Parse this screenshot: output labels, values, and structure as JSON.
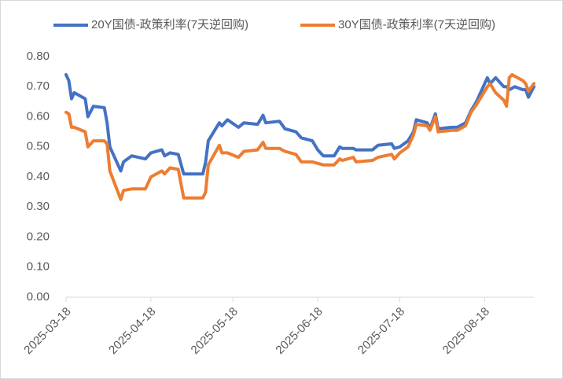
{
  "chart_data": {
    "type": "line",
    "x": [
      "2025-03-18",
      "2025-03-19",
      "2025-03-20",
      "2025-03-21",
      "2025-03-25",
      "2025-03-26",
      "2025-03-28",
      "2025-04-01",
      "2025-04-02",
      "2025-04-03",
      "2025-04-07",
      "2025-04-08",
      "2025-04-11",
      "2025-04-16",
      "2025-04-18",
      "2025-04-22",
      "2025-04-23",
      "2025-04-25",
      "2025-04-28",
      "2025-04-30",
      "2025-05-07",
      "2025-05-08",
      "2025-05-09",
      "2025-05-13",
      "2025-05-14",
      "2025-05-16",
      "2025-05-20",
      "2025-05-22",
      "2025-05-27",
      "2025-05-29",
      "2025-05-30",
      "2025-06-04",
      "2025-06-06",
      "2025-06-10",
      "2025-06-12",
      "2025-06-16",
      "2025-06-18",
      "2025-06-20",
      "2025-06-24",
      "2025-06-26",
      "2025-06-27",
      "2025-07-01",
      "2025-07-02",
      "2025-07-08",
      "2025-07-10",
      "2025-07-15",
      "2025-07-16",
      "2025-07-18",
      "2025-07-21",
      "2025-07-23",
      "2025-07-24",
      "2025-07-28",
      "2025-07-29",
      "2025-07-31",
      "2025-08-01",
      "2025-08-06",
      "2025-08-08",
      "2025-08-11",
      "2025-08-13",
      "2025-08-15",
      "2025-08-19",
      "2025-08-20",
      "2025-08-22",
      "2025-08-25",
      "2025-08-26",
      "2025-08-27",
      "2025-08-28",
      "2025-08-29",
      "2025-09-01",
      "2025-09-02",
      "2025-09-03",
      "2025-09-05"
    ],
    "series": [
      {
        "name": "20Y国债-政策利率(7天逆回购)",
        "color": "#4472c4",
        "values": [
          0.74,
          0.72,
          0.66,
          0.68,
          0.66,
          0.6,
          0.635,
          0.63,
          0.58,
          0.5,
          0.42,
          0.45,
          0.47,
          0.46,
          0.48,
          0.49,
          0.47,
          0.48,
          0.475,
          0.41,
          0.41,
          0.45,
          0.52,
          0.58,
          0.57,
          0.59,
          0.565,
          0.58,
          0.575,
          0.605,
          0.58,
          0.585,
          0.56,
          0.55,
          0.53,
          0.52,
          0.49,
          0.47,
          0.47,
          0.5,
          0.495,
          0.495,
          0.49,
          0.49,
          0.505,
          0.51,
          0.495,
          0.5,
          0.52,
          0.55,
          0.59,
          0.58,
          0.56,
          0.61,
          0.56,
          0.565,
          0.565,
          0.58,
          0.62,
          0.65,
          0.73,
          0.71,
          0.73,
          0.7,
          0.7,
          0.69,
          0.695,
          0.7,
          0.69,
          0.69,
          0.665,
          0.7
        ]
      },
      {
        "name": "30Y国债-政策利率(7天逆回购)",
        "color": "#ed7d31",
        "values": [
          0.615,
          0.61,
          0.565,
          0.565,
          0.55,
          0.5,
          0.52,
          0.52,
          0.51,
          0.42,
          0.325,
          0.355,
          0.36,
          0.36,
          0.4,
          0.42,
          0.41,
          0.43,
          0.425,
          0.33,
          0.33,
          0.35,
          0.44,
          0.505,
          0.48,
          0.48,
          0.465,
          0.485,
          0.49,
          0.515,
          0.495,
          0.495,
          0.485,
          0.475,
          0.45,
          0.45,
          0.445,
          0.44,
          0.44,
          0.46,
          0.455,
          0.465,
          0.45,
          0.455,
          0.465,
          0.475,
          0.46,
          0.48,
          0.5,
          0.54,
          0.575,
          0.57,
          0.555,
          0.6,
          0.55,
          0.555,
          0.555,
          0.57,
          0.615,
          0.64,
          0.7,
          0.71,
          0.68,
          0.655,
          0.635,
          0.73,
          0.74,
          0.735,
          0.72,
          0.71,
          0.685,
          0.71
        ]
      }
    ],
    "xlim": [
      "2025-03-18",
      "2025-09-05"
    ],
    "xticks": [
      "2025-03-18",
      "2025-04-18",
      "2025-05-18",
      "2025-06-18",
      "2025-07-18",
      "2025-08-18"
    ],
    "ylim": [
      0,
      0.8
    ],
    "yticks": [
      {
        "value": 0,
        "label": "0.00"
      },
      {
        "value": 0.1,
        "label": "0.10"
      },
      {
        "value": 0.2,
        "label": "0.20"
      },
      {
        "value": 0.3,
        "label": "0.30"
      },
      {
        "value": 0.4,
        "label": "0.40"
      },
      {
        "value": 0.5,
        "label": "0.50"
      },
      {
        "value": 0.6,
        "label": "0.60"
      },
      {
        "value": 0.7,
        "label": "0.70"
      },
      {
        "value": 0.8,
        "label": "0.80"
      }
    ],
    "grid": false,
    "legend": "top"
  }
}
